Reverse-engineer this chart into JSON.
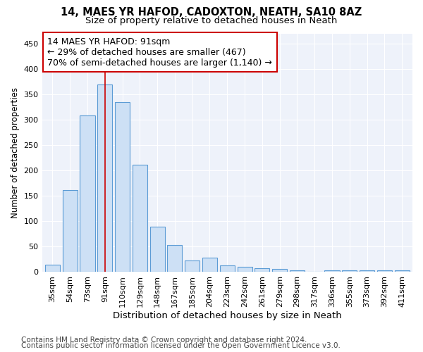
{
  "title": "14, MAES YR HAFOD, CADOXTON, NEATH, SA10 8AZ",
  "subtitle": "Size of property relative to detached houses in Neath",
  "xlabel": "Distribution of detached houses by size in Neath",
  "ylabel": "Number of detached properties",
  "categories": [
    "35sqm",
    "54sqm",
    "73sqm",
    "91sqm",
    "110sqm",
    "129sqm",
    "148sqm",
    "167sqm",
    "185sqm",
    "204sqm",
    "223sqm",
    "242sqm",
    "261sqm",
    "279sqm",
    "298sqm",
    "317sqm",
    "336sqm",
    "355sqm",
    "373sqm",
    "392sqm",
    "411sqm"
  ],
  "values": [
    14,
    162,
    308,
    370,
    335,
    212,
    90,
    53,
    23,
    29,
    13,
    10,
    8,
    6,
    4,
    0,
    4,
    4,
    4,
    4,
    4
  ],
  "bar_color": "#cde0f5",
  "bar_edge_color": "#5b9bd5",
  "annotation_line1": "14 MAES YR HAFOD: 91sqm",
  "annotation_line2": "← 29% of detached houses are smaller (467)",
  "annotation_line3": "70% of semi-detached houses are larger (1,140) →",
  "annotation_box_color": "#ffffff",
  "annotation_box_edge": "#cc0000",
  "vline_color": "#cc0000",
  "vline_x": 3,
  "ylim": [
    0,
    470
  ],
  "yticks": [
    0,
    50,
    100,
    150,
    200,
    250,
    300,
    350,
    400,
    450
  ],
  "footer1": "Contains HM Land Registry data © Crown copyright and database right 2024.",
  "footer2": "Contains public sector information licensed under the Open Government Licence v3.0.",
  "bg_color": "#eef2fa",
  "plot_bg_color": "#eef2fa",
  "grid_color": "#ffffff",
  "title_fontsize": 10.5,
  "subtitle_fontsize": 9.5,
  "tick_fontsize": 8,
  "ylabel_fontsize": 8.5,
  "xlabel_fontsize": 9.5,
  "annotation_fontsize": 9,
  "footer_fontsize": 7.5
}
